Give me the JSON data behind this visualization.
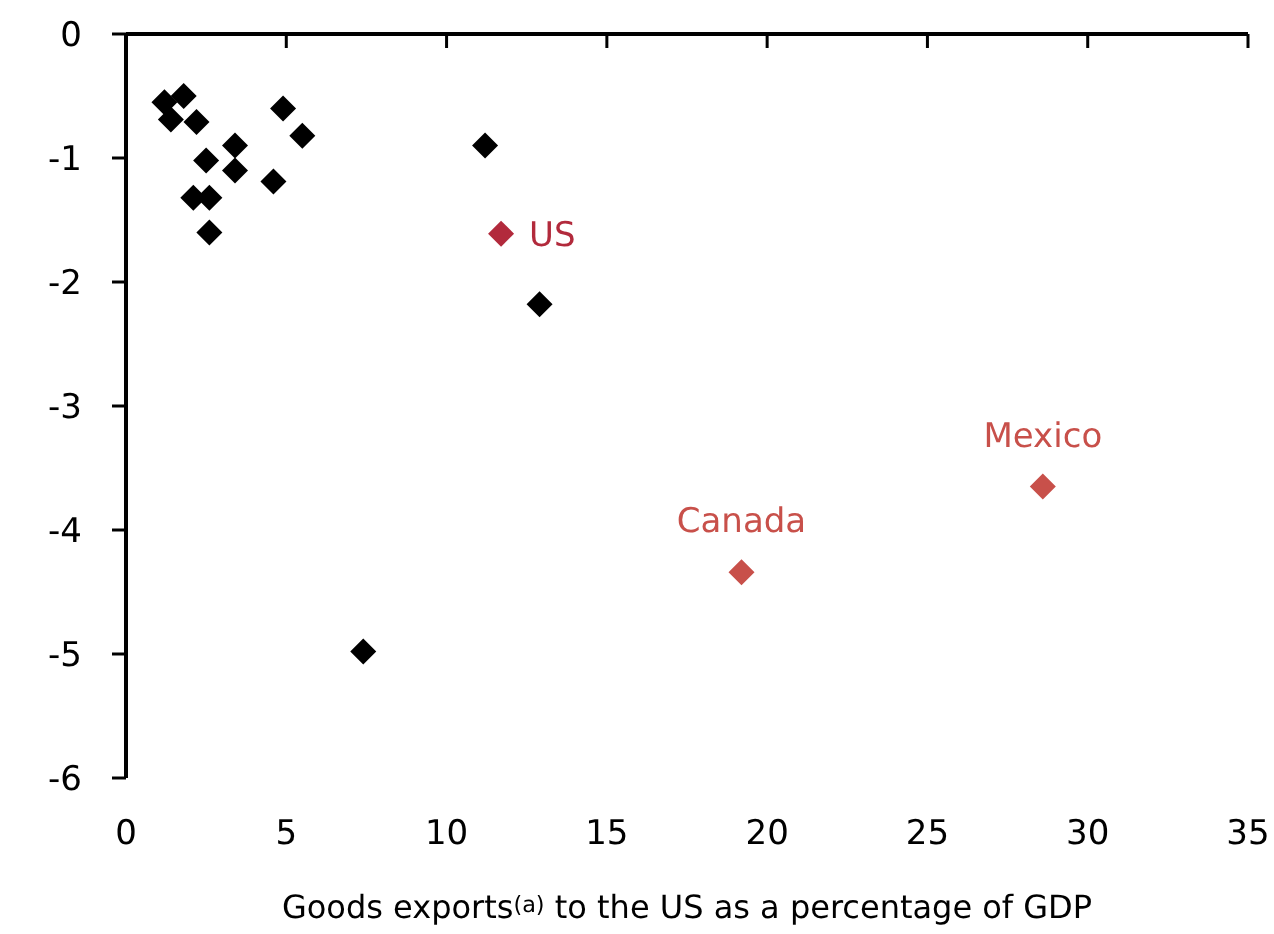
{
  "chart_data": {
    "type": "scatter",
    "xlabel": "Goods exports$^{(a)}$ to the US as a percentage of GDP",
    "marker": "diamond",
    "grid": false,
    "xlim": [
      0,
      35
    ],
    "xticks": [
      0,
      5,
      10,
      15,
      20,
      25,
      30,
      35
    ],
    "ylim": [
      -6,
      0
    ],
    "yticks": [
      -6,
      -5,
      -4,
      -3,
      -2,
      -1,
      0
    ],
    "series": [
      {
        "color": "#000000",
        "x": [
          1.2,
          1.4,
          1.8,
          2.2,
          2.5,
          2.1,
          2.6,
          2.6,
          3.4,
          3.4,
          4.9,
          5.5,
          4.6,
          11.2,
          12.9,
          7.4
        ],
        "values": [
          -0.55,
          -0.69,
          -0.5,
          -0.71,
          -1.02,
          -1.32,
          -1.32,
          -1.6,
          -0.9,
          -1.1,
          -0.6,
          -0.82,
          -1.19,
          -0.9,
          -2.18,
          -4.98
        ]
      },
      {
        "name": "US",
        "color": "#b22a3c",
        "x": [
          11.7
        ],
        "values": [
          -1.61
        ]
      },
      {
        "name": "Canada",
        "color": "#c8504a",
        "x": [
          19.2
        ],
        "values": [
          -4.34
        ]
      },
      {
        "name": "Mexico",
        "color": "#c8504a",
        "x": [
          28.6
        ],
        "values": [
          -3.65
        ]
      }
    ]
  }
}
